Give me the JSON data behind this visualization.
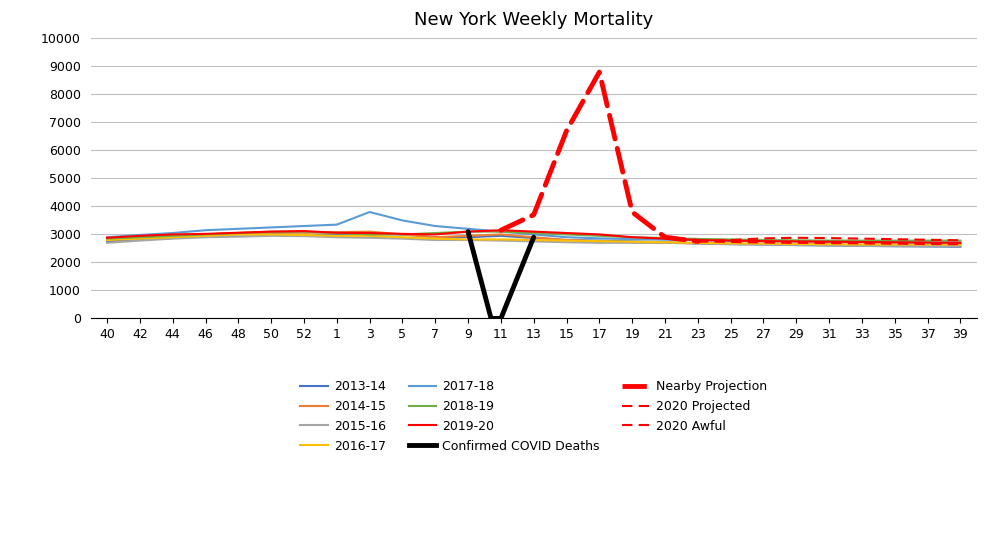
{
  "title": "New York Weekly Mortality",
  "x_ticks": [
    "40",
    "42",
    "44",
    "46",
    "48",
    "50",
    "52",
    "1",
    "3",
    "5",
    "7",
    "9",
    "11",
    "13",
    "15",
    "17",
    "19",
    "21",
    "23",
    "25",
    "27",
    "29",
    "31",
    "33",
    "35",
    "37",
    "39"
  ],
  "x_positions": [
    0,
    1,
    2,
    3,
    4,
    5,
    6,
    7,
    8,
    9,
    10,
    11,
    12,
    13,
    14,
    15,
    16,
    17,
    18,
    19,
    20,
    21,
    22,
    23,
    24,
    25,
    26
  ],
  "ylim": [
    0,
    10000
  ],
  "yticks": [
    0,
    1000,
    2000,
    3000,
    4000,
    5000,
    6000,
    7000,
    8000,
    9000,
    10000
  ],
  "series_2013_14": {
    "label": "2013-14",
    "color": "#4472C4",
    "values": [
      2750,
      2820,
      2870,
      2980,
      3000,
      3020,
      2980,
      3000,
      3050,
      3000,
      2900,
      2900,
      2950,
      2870,
      2800,
      2780,
      2750,
      2720,
      2680,
      2650,
      2640,
      2620,
      2610,
      2590,
      2580,
      2570,
      2560
    ]
  },
  "series_2014_15": {
    "label": "2014-15",
    "color": "#ED7D31",
    "values": [
      2820,
      2900,
      2950,
      3000,
      3050,
      3080,
      3060,
      3080,
      3100,
      3000,
      2900,
      2950,
      3000,
      2900,
      2800,
      2750,
      2720,
      2700,
      2680,
      2670,
      2660,
      2650,
      2640,
      2630,
      2640,
      2640,
      2650
    ]
  },
  "series_2015_16": {
    "label": "2015-16",
    "color": "#A5A5A5",
    "values": [
      2700,
      2780,
      2850,
      2900,
      2920,
      2950,
      2940,
      2900,
      2880,
      2850,
      2800,
      2800,
      2780,
      2750,
      2720,
      2700,
      2700,
      2700,
      2680,
      2660,
      2640,
      2620,
      2600,
      2590,
      2580,
      2580,
      2580
    ]
  },
  "series_2016_17": {
    "label": "2016-17",
    "color": "#FFC000",
    "values": [
      2800,
      2850,
      2900,
      2950,
      3000,
      3000,
      2980,
      2950,
      2950,
      2900,
      2850,
      2820,
      2820,
      2800,
      2780,
      2760,
      2740,
      2720,
      2700,
      2680,
      2670,
      2660,
      2650,
      2640,
      2640,
      2640,
      2640
    ]
  },
  "series_2017_18": {
    "label": "2017-18",
    "color": "#5B9BD5",
    "values": [
      2900,
      2980,
      3050,
      3150,
      3200,
      3250,
      3300,
      3350,
      3800,
      3500,
      3300,
      3200,
      3100,
      3000,
      2900,
      2860,
      2830,
      2810,
      2790,
      2770,
      2760,
      2750,
      2740,
      2730,
      2720,
      2710,
      2700
    ]
  },
  "series_2018_19": {
    "label": "2018-19",
    "color": "#70AD47",
    "values": [
      2850,
      2900,
      2950,
      3000,
      3050,
      3100,
      3100,
      3050,
      3000,
      3000,
      3050,
      3100,
      3100,
      3050,
      3000,
      2950,
      2900,
      2870,
      2840,
      2820,
      2800,
      2790,
      2780,
      2780,
      2780,
      2780,
      2780
    ]
  },
  "series_2019_20": {
    "label": "2019-20",
    "color": "#FF0000",
    "values": [
      2880,
      2950,
      3000,
      3020,
      3060,
      3100,
      3120,
      3060,
      3050,
      3020,
      3000,
      3100,
      3150,
      3100,
      3050,
      3000,
      2900,
      2850,
      2800,
      2780,
      2760,
      2750,
      2740,
      2730,
      2720,
      2710,
      2700
    ]
  },
  "series_covid": {
    "label": "Confirmed COVID Deaths",
    "color": "#000000",
    "lw": 3.5,
    "x_positions": [
      11.0,
      11.7,
      12.0,
      13.0
    ],
    "values": [
      3100,
      0,
      0,
      2900
    ]
  },
  "series_nearby": {
    "label": "Nearby Projection",
    "color": "#FF0000",
    "lw": 3.5,
    "x_positions": [
      12.0,
      13.0,
      14.0,
      15.0,
      16.0,
      17.0,
      18.0
    ],
    "values": [
      3150,
      3700,
      6700,
      8800,
      3800,
      2900,
      2750
    ]
  },
  "series_projected": {
    "label": "2020 Projected",
    "color": "#FF0000",
    "lw": 1.5,
    "x_positions": [
      18.0,
      19,
      20,
      21,
      22,
      23,
      24,
      25,
      26
    ],
    "values": [
      2750,
      2730,
      2710,
      2700,
      2690,
      2680,
      2670,
      2660,
      2650
    ]
  },
  "series_awful": {
    "label": "2020 Awful",
    "color": "#FF0000",
    "lw": 1.5,
    "x_positions": [
      18.0,
      19,
      20,
      21,
      22,
      23,
      24,
      25,
      26
    ],
    "values": [
      2750,
      2800,
      2860,
      2880,
      2870,
      2850,
      2830,
      2810,
      2790
    ]
  },
  "legend_row1_labels": [
    "2013-14",
    "2014-15",
    "2015-16"
  ],
  "legend_row1_colors": [
    "#4472C4",
    "#ED7D31",
    "#A5A5A5"
  ],
  "legend_row2_labels": [
    "2016-17",
    "2017-18",
    "2018-19"
  ],
  "legend_row2_colors": [
    "#FFC000",
    "#5B9BD5",
    "#70AD47"
  ],
  "legend_row3_labels": [
    "2019-20",
    "Confirmed COVID Deaths",
    "Nearby Projection"
  ],
  "legend_row4_labels": [
    "2020 Projected",
    "2020 Awful"
  ]
}
